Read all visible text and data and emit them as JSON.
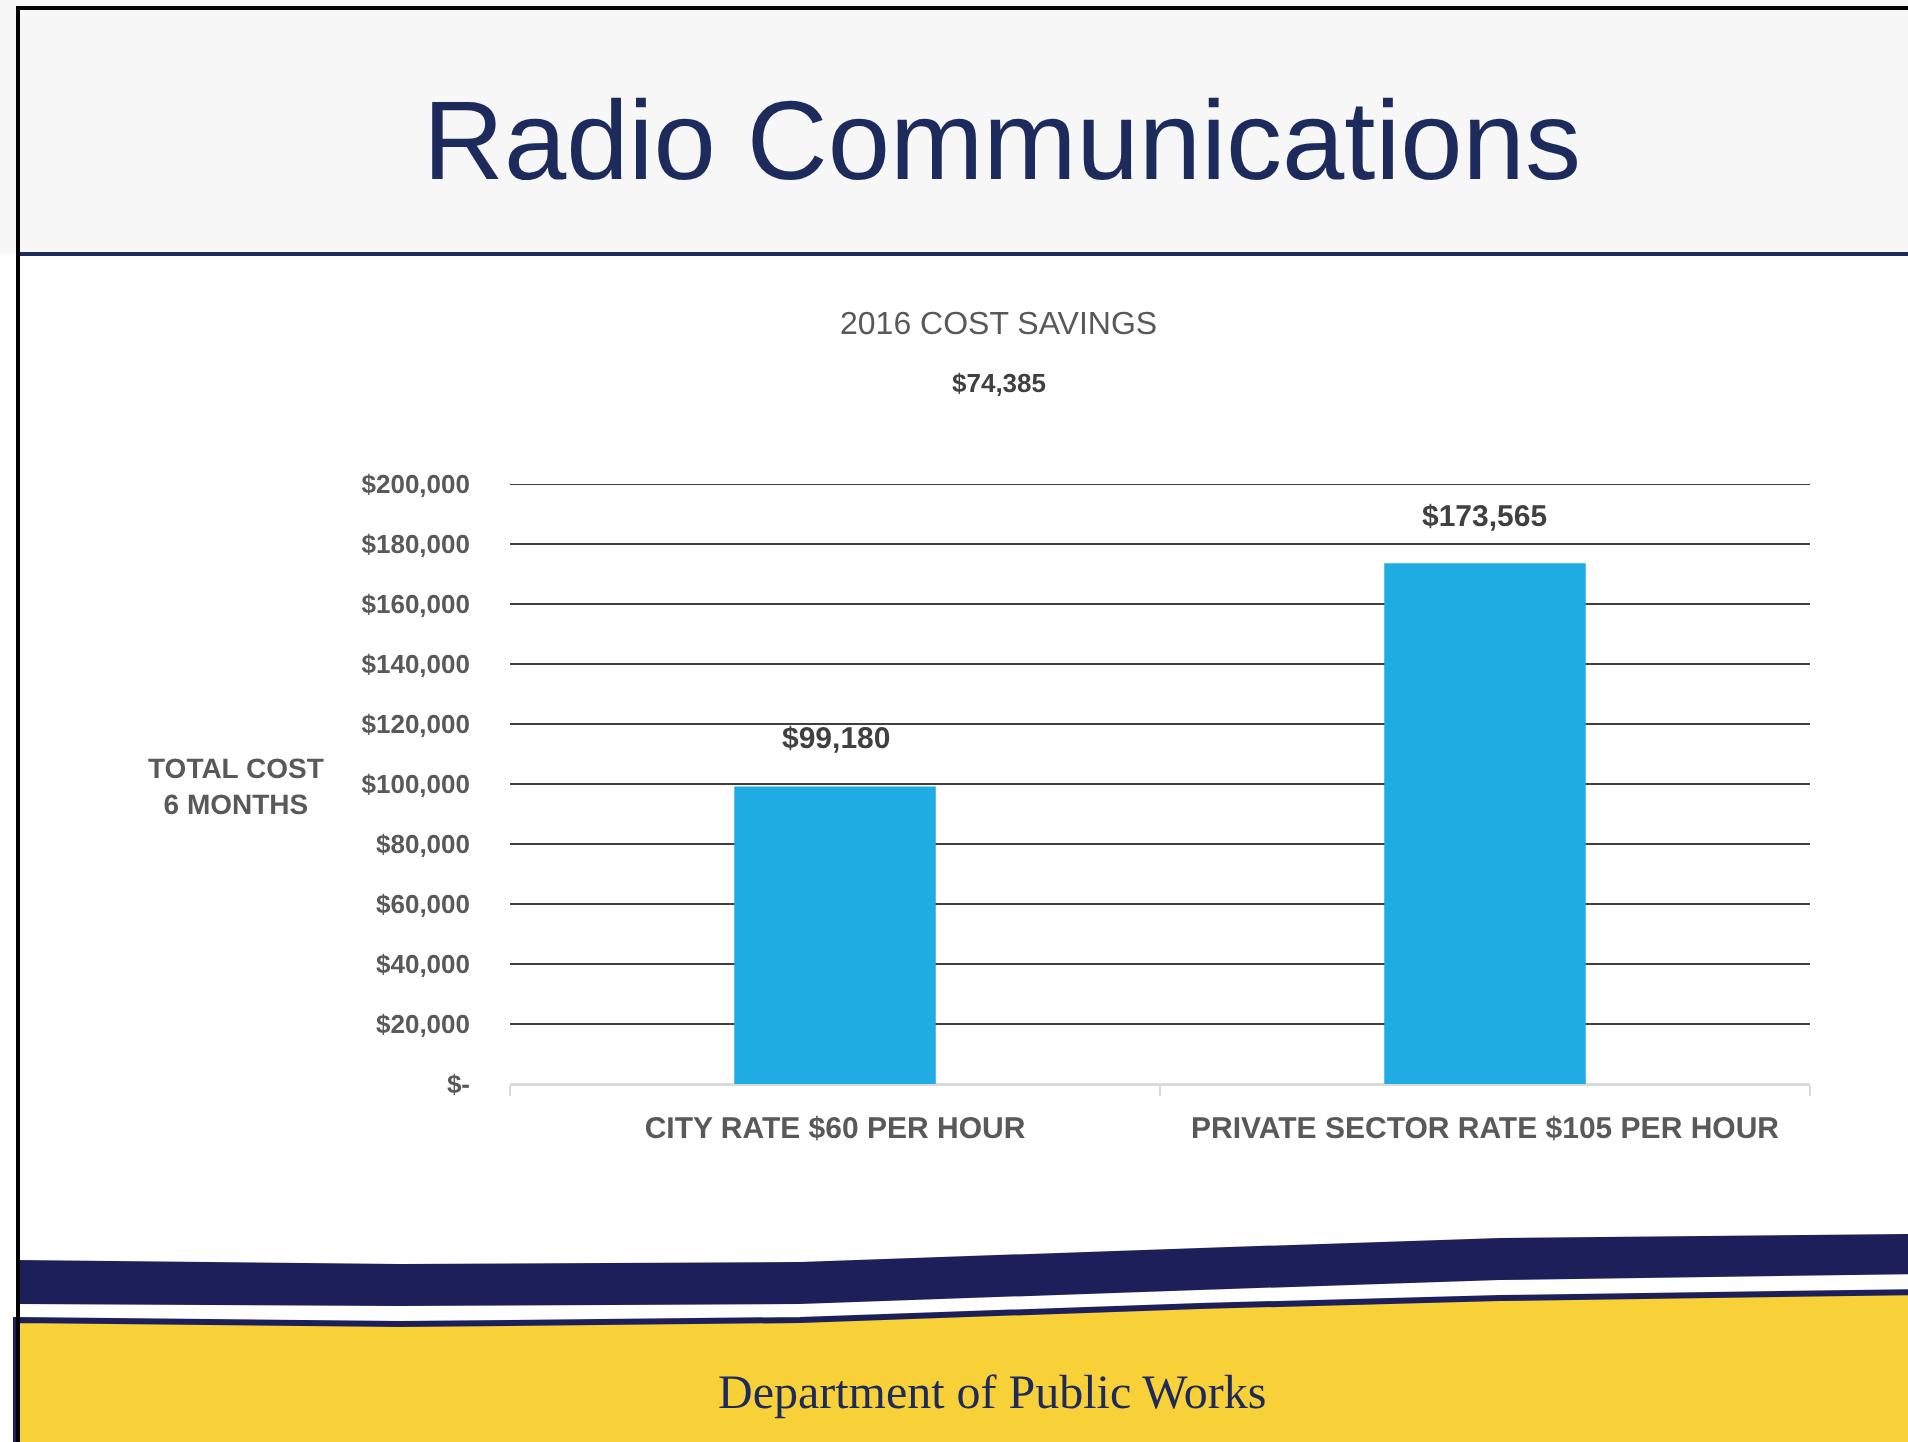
{
  "chart_data": {
    "type": "bar",
    "title": "Radio Communications",
    "subtitle": "2016 COST SAVINGS",
    "ylabel": "TOTAL COST\n6 MONTHS",
    "categories": [
      "CITY RATE $60 PER HOUR",
      "PRIVATE SECTOR RATE $105 PER HOUR"
    ],
    "values": [
      99180,
      173565
    ],
    "value_labels": [
      "$99,180",
      "$173,565"
    ],
    "color": "#1eace2",
    "ylim": [
      0,
      200000
    ],
    "yticks": [
      {
        "value": 0,
        "label": "$-"
      },
      {
        "value": 20000,
        "label": "$20,000"
      },
      {
        "value": 40000,
        "label": "$40,000"
      },
      {
        "value": 60000,
        "label": "$60,000"
      },
      {
        "value": 80000,
        "label": "$80,000"
      },
      {
        "value": 100000,
        "label": "$100,000"
      },
      {
        "value": 120000,
        "label": "$120,000"
      },
      {
        "value": 140000,
        "label": "$140,000"
      },
      {
        "value": 160000,
        "label": "$160,000"
      },
      {
        "value": 180000,
        "label": "$180,000"
      },
      {
        "value": 200000,
        "label": "$200,000"
      }
    ],
    "grid": "y",
    "annotations": [
      "$74,385",
      "Department of Public Works"
    ]
  }
}
